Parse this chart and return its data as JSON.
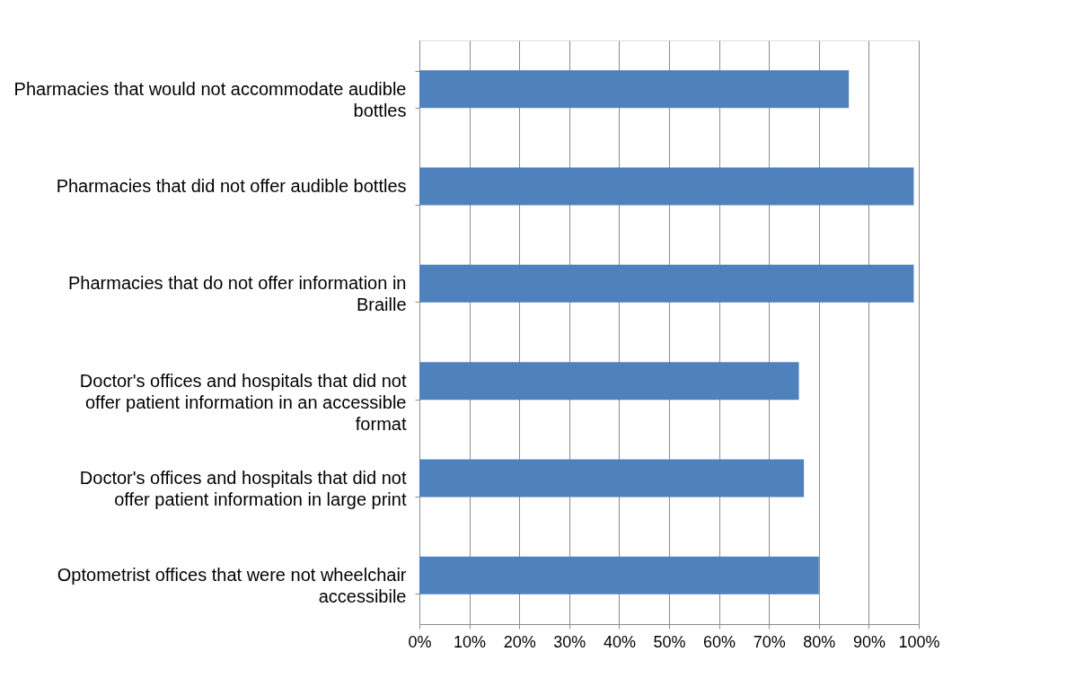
{
  "chart_data": {
    "type": "bar",
    "orientation": "horizontal",
    "categories": [
      "Pharmacies that would not accommodate audible bottles",
      "Pharmacies that did not offer audible bottles",
      "Pharmacies that do not offer information in Braille",
      "Doctor's offices and hospitals that did not offer patient information in an accessible format",
      "Doctor's offices and hospitals that did not offer patient information in large print",
      "Optometrist offices that were not wheelchair accessibile"
    ],
    "values": [
      86,
      99,
      99,
      76,
      77,
      80
    ],
    "color": "#4f81bd",
    "xlim": [
      0,
      100
    ],
    "xticks": [
      {
        "value": 0,
        "label": "0%"
      },
      {
        "value": 10,
        "label": "10%"
      },
      {
        "value": 20,
        "label": "20%"
      },
      {
        "value": 30,
        "label": "30%"
      },
      {
        "value": 40,
        "label": "40%"
      },
      {
        "value": 50,
        "label": "50%"
      },
      {
        "value": 60,
        "label": "60%"
      },
      {
        "value": 70,
        "label": "70%"
      },
      {
        "value": 80,
        "label": "80%"
      },
      {
        "value": 90,
        "label": "90%"
      },
      {
        "value": 100,
        "label": "100%"
      }
    ],
    "grid": "x"
  }
}
